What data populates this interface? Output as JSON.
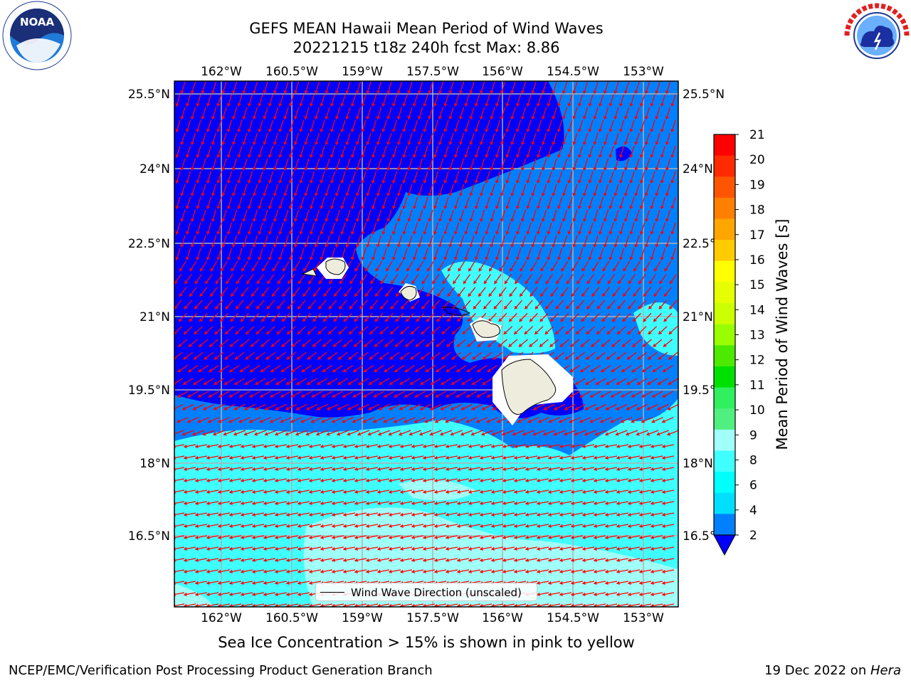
{
  "title": {
    "line1": "GEFS MEAN Hawaii Mean Period of Wind Waves",
    "line2": "20221215 t18z 240h fcst   Max: 8.86"
  },
  "logos": {
    "left": "noaa-logo",
    "left_text": "NOAA",
    "right": "nws-logo"
  },
  "map": {
    "lon_ticks": [
      "162°W",
      "160.5°W",
      "159°W",
      "157.5°W",
      "156°W",
      "154.5°W",
      "153°W"
    ],
    "lat_ticks": [
      "25.5°N",
      "24°N",
      "22.5°N",
      "21°N",
      "19.5°N",
      "18°N",
      "16.5°N"
    ],
    "land_color": "#eeecdc",
    "arrow_color": "#ff0000",
    "grid": true
  },
  "legend": {
    "label": "Wind Wave Direction (unscaled)",
    "placement": "bottom-center"
  },
  "colorbar": {
    "label": "Mean Period of Wind Waves [s]",
    "ticks": [
      "21",
      "20",
      "19",
      "18",
      "17",
      "16",
      "15",
      "14",
      "13",
      "12",
      "11",
      "10",
      "9",
      "8",
      "6",
      "4",
      "2"
    ],
    "colors": [
      "#ff0000",
      "#ff2a00",
      "#ff5500",
      "#ff7f00",
      "#ffa500",
      "#ffcc00",
      "#ffff00",
      "#e6ff00",
      "#ccff00",
      "#99ff00",
      "#4dea00",
      "#00e000",
      "#30f060",
      "#50f080",
      "#a0fff8",
      "#40ffff",
      "#00ffff",
      "#00dfff",
      "#0080ff"
    ],
    "extend_min_color": "#0000ff"
  },
  "notes": {
    "sea_ice": "Sea Ice Concentration > 15% is shown in pink to yellow"
  },
  "footer": {
    "left": "NCEP/EMC/Verification Post Processing Product Generation Branch",
    "right_prefix": "19 Dec 2022 on ",
    "right_host": "Hera"
  }
}
